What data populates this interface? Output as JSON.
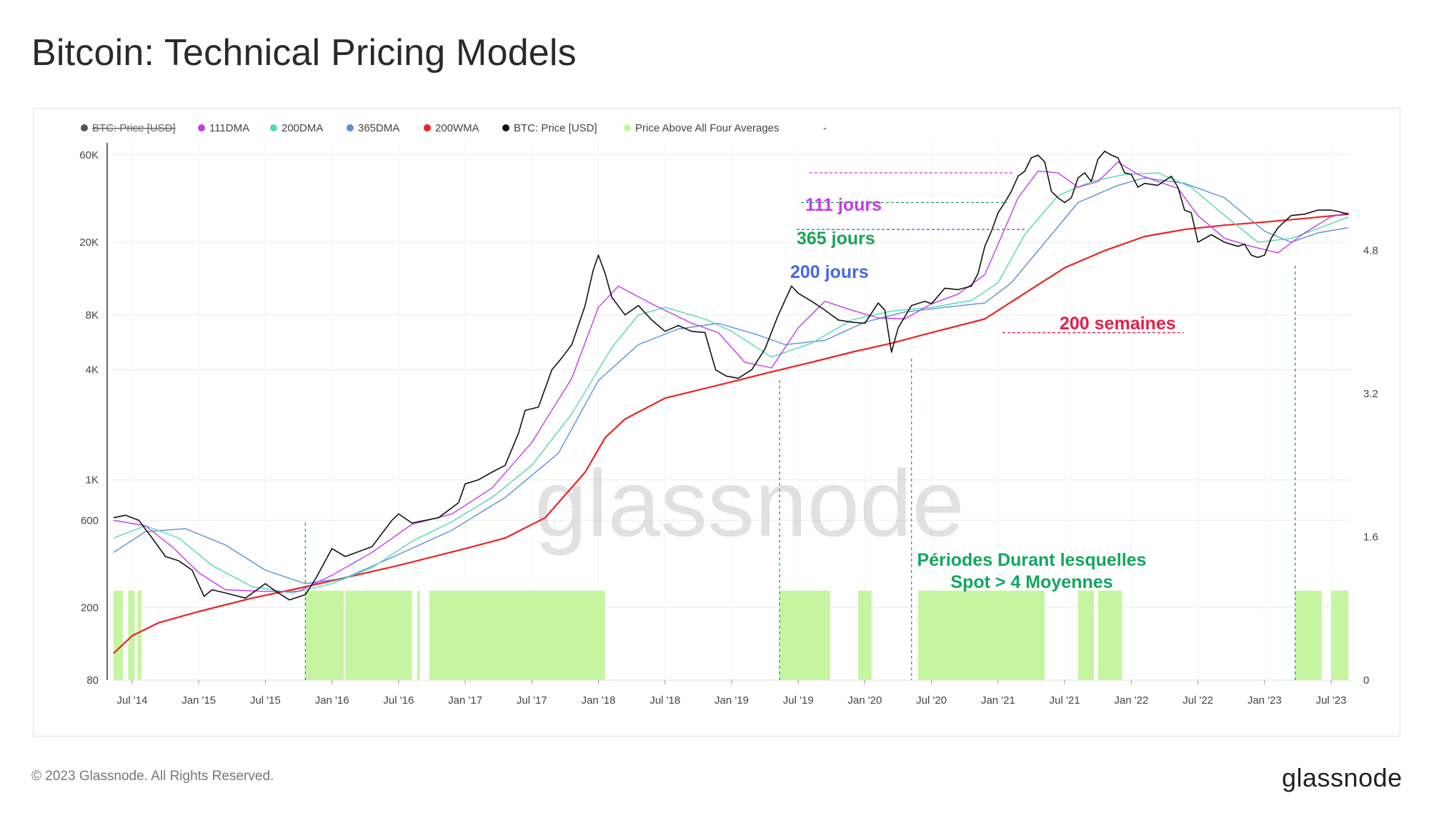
{
  "page": {
    "title": "Bitcoin: Technical Pricing Models",
    "footer": "© 2023 Glassnode. All Rights Reserved.",
    "logo": "glassnode",
    "watermark": "glassnode"
  },
  "chart_data": {
    "type": "line",
    "title": "Bitcoin: Technical Pricing Models",
    "y_scale": "log",
    "ylim": [
      80,
      70000
    ],
    "y2lim": [
      0,
      6
    ],
    "yticks": [
      {
        "value": 60000,
        "label": "60K"
      },
      {
        "value": 20000,
        "label": "20K"
      },
      {
        "value": 8000,
        "label": "8K"
      },
      {
        "value": 4000,
        "label": "4K"
      },
      {
        "value": 1000,
        "label": "1K"
      },
      {
        "value": 600,
        "label": "600"
      },
      {
        "value": 200,
        "label": "200"
      },
      {
        "value": 80,
        "label": "80"
      }
    ],
    "y2ticks": [
      {
        "value": 4.8,
        "label": "4.8"
      },
      {
        "value": 3.2,
        "label": "3.2"
      },
      {
        "value": 1.6,
        "label": "1.6"
      },
      {
        "value": 0,
        "label": "0"
      }
    ],
    "xlim": [
      2014.35,
      2023.65
    ],
    "xticks": [
      {
        "value": 2014.5,
        "label": "Jul '14"
      },
      {
        "value": 2015.0,
        "label": "Jan '15"
      },
      {
        "value": 2015.5,
        "label": "Jul '15"
      },
      {
        "value": 2016.0,
        "label": "Jan '16"
      },
      {
        "value": 2016.5,
        "label": "Jul '16"
      },
      {
        "value": 2017.0,
        "label": "Jan '17"
      },
      {
        "value": 2017.5,
        "label": "Jul '17"
      },
      {
        "value": 2018.0,
        "label": "Jan '18"
      },
      {
        "value": 2018.5,
        "label": "Jul '18"
      },
      {
        "value": 2019.0,
        "label": "Jan '19"
      },
      {
        "value": 2019.5,
        "label": "Jul '19"
      },
      {
        "value": 2020.0,
        "label": "Jan '20"
      },
      {
        "value": 2020.5,
        "label": "Jul '20"
      },
      {
        "value": 2021.0,
        "label": "Jan '21"
      },
      {
        "value": 2021.5,
        "label": "Jul '21"
      },
      {
        "value": 2022.0,
        "label": "Jan '22"
      },
      {
        "value": 2022.5,
        "label": "Jul '22"
      },
      {
        "value": 2023.0,
        "label": "Jan '23"
      },
      {
        "value": 2023.5,
        "label": "Jul '23"
      }
    ],
    "legend": [
      {
        "label": "BTC: Price [USD]",
        "color": "#555555",
        "disabled": true
      },
      {
        "label": "111DMA",
        "color": "#c33bea",
        "disabled": false
      },
      {
        "label": "200DMA",
        "color": "#4fd9b4",
        "disabled": false
      },
      {
        "label": "365DMA",
        "color": "#5b8fd8",
        "disabled": false
      },
      {
        "label": "200WMA",
        "color": "#ee2222",
        "disabled": false
      },
      {
        "label": "BTC: Price [USD]",
        "color": "#111111",
        "disabled": false
      },
      {
        "label": "Price Above All Four Averages",
        "color": "#c6f5a2",
        "disabled": false
      },
      {
        "label": "-",
        "color": "",
        "disabled": false
      }
    ],
    "series": [
      {
        "name": "BTC: Price [USD]",
        "color": "#111111",
        "x": [
          2014.36,
          2014.45,
          2014.55,
          2014.65,
          2014.75,
          2014.85,
          2014.95,
          2015.04,
          2015.1,
          2015.2,
          2015.35,
          2015.5,
          2015.58,
          2015.68,
          2015.8,
          2015.88,
          2016.0,
          2016.1,
          2016.3,
          2016.45,
          2016.5,
          2016.6,
          2016.8,
          2016.95,
          2017.0,
          2017.1,
          2017.2,
          2017.3,
          2017.4,
          2017.45,
          2017.55,
          2017.65,
          2017.72,
          2017.8,
          2017.9,
          2017.96,
          2018.0,
          2018.05,
          2018.1,
          2018.2,
          2018.3,
          2018.4,
          2018.5,
          2018.6,
          2018.7,
          2018.8,
          2018.88,
          2018.96,
          2019.05,
          2019.15,
          2019.25,
          2019.35,
          2019.45,
          2019.5,
          2019.6,
          2019.7,
          2019.8,
          2019.9,
          2020.0,
          2020.1,
          2020.15,
          2020.2,
          2020.25,
          2020.35,
          2020.45,
          2020.5,
          2020.6,
          2020.7,
          2020.8,
          2020.85,
          2020.9,
          2020.95,
          2021.0,
          2021.05,
          2021.1,
          2021.15,
          2021.2,
          2021.25,
          2021.3,
          2021.35,
          2021.4,
          2021.45,
          2021.5,
          2021.55,
          2021.6,
          2021.65,
          2021.7,
          2021.75,
          2021.8,
          2021.85,
          2021.9,
          2021.95,
          2022.0,
          2022.05,
          2022.1,
          2022.2,
          2022.3,
          2022.35,
          2022.4,
          2022.45,
          2022.5,
          2022.6,
          2022.7,
          2022.8,
          2022.85,
          2022.9,
          2022.95,
          2023.0,
          2023.05,
          2023.1,
          2023.2,
          2023.3,
          2023.4,
          2023.5,
          2023.55,
          2023.63
        ],
        "y": [
          620,
          640,
          600,
          480,
          380,
          360,
          320,
          230,
          250,
          240,
          225,
          270,
          245,
          220,
          235,
          290,
          420,
          380,
          430,
          600,
          650,
          580,
          620,
          750,
          950,
          1000,
          1100,
          1200,
          1800,
          2400,
          2500,
          4000,
          4600,
          5500,
          9000,
          14000,
          17000,
          13500,
          10000,
          8000,
          9000,
          7500,
          6500,
          7000,
          6500,
          6400,
          4000,
          3700,
          3600,
          4000,
          5200,
          8000,
          11500,
          10500,
          9500,
          8500,
          7500,
          7300,
          7200,
          9300,
          8500,
          5000,
          6800,
          9000,
          9500,
          9200,
          11200,
          11000,
          11500,
          13500,
          19000,
          23000,
          29000,
          33000,
          38000,
          46000,
          49000,
          58000,
          60000,
          55000,
          38000,
          35000,
          33000,
          35000,
          45000,
          48000,
          43000,
          57000,
          63000,
          60000,
          58000,
          48000,
          47000,
          40000,
          42000,
          41000,
          46000,
          40000,
          30000,
          29000,
          20000,
          22000,
          20000,
          19000,
          19500,
          17000,
          16500,
          17000,
          21000,
          24000,
          28000,
          28500,
          30000,
          30000,
          29500,
          28500
        ]
      },
      {
        "name": "111DMA",
        "color": "#c33bea",
        "x": [
          2014.36,
          2014.6,
          2014.8,
          2015.0,
          2015.2,
          2015.5,
          2015.75,
          2016.0,
          2016.3,
          2016.6,
          2016.9,
          2017.2,
          2017.5,
          2017.8,
          2018.0,
          2018.15,
          2018.4,
          2018.7,
          2018.9,
          2019.1,
          2019.3,
          2019.5,
          2019.7,
          2019.9,
          2020.1,
          2020.3,
          2020.5,
          2020.7,
          2020.9,
          2021.0,
          2021.15,
          2021.3,
          2021.45,
          2021.6,
          2021.75,
          2021.9,
          2022.05,
          2022.2,
          2022.35,
          2022.5,
          2022.7,
          2022.9,
          2023.1,
          2023.3,
          2023.5,
          2023.63
        ],
        "y": [
          600,
          560,
          430,
          310,
          250,
          245,
          245,
          300,
          400,
          570,
          650,
          900,
          1600,
          3600,
          8800,
          11500,
          9200,
          7200,
          6400,
          4400,
          4100,
          6800,
          9500,
          8500,
          7700,
          7600,
          9200,
          10400,
          13300,
          19500,
          35000,
          49000,
          48000,
          40000,
          43000,
          55000,
          47000,
          43000,
          39500,
          28000,
          21000,
          19000,
          17500,
          22500,
          27600,
          29000
        ]
      },
      {
        "name": "200DMA",
        "color": "#4fd9b4",
        "x": [
          2014.36,
          2014.6,
          2014.85,
          2015.1,
          2015.4,
          2015.7,
          2016.0,
          2016.3,
          2016.6,
          2016.9,
          2017.2,
          2017.5,
          2017.8,
          2018.1,
          2018.3,
          2018.5,
          2018.8,
          2019.0,
          2019.3,
          2019.6,
          2019.9,
          2020.2,
          2020.5,
          2020.8,
          2021.0,
          2021.2,
          2021.45,
          2021.7,
          2021.95,
          2022.2,
          2022.45,
          2022.7,
          2022.95,
          2023.2,
          2023.45,
          2023.63
        ],
        "y": [
          480,
          560,
          480,
          340,
          260,
          240,
          270,
          330,
          460,
          590,
          800,
          1200,
          2300,
          5300,
          8000,
          8800,
          7600,
          6500,
          4700,
          5600,
          7500,
          8400,
          8800,
          9600,
          12000,
          22000,
          36000,
          43000,
          47000,
          48000,
          40000,
          28000,
          20000,
          21000,
          24500,
          27500
        ]
      },
      {
        "name": "365DMA",
        "color": "#5b8fd8",
        "x": [
          2014.36,
          2014.6,
          2014.9,
          2015.2,
          2015.5,
          2015.8,
          2016.1,
          2016.5,
          2016.9,
          2017.3,
          2017.7,
          2018.0,
          2018.3,
          2018.6,
          2018.9,
          2019.2,
          2019.4,
          2019.7,
          2020.0,
          2020.3,
          2020.6,
          2020.9,
          2021.1,
          2021.4,
          2021.6,
          2021.9,
          2022.1,
          2022.4,
          2022.7,
          2023.0,
          2023.2,
          2023.4,
          2023.63
        ],
        "y": [
          400,
          520,
          540,
          440,
          320,
          270,
          290,
          390,
          530,
          800,
          1400,
          3500,
          5500,
          6700,
          7200,
          6200,
          5500,
          5800,
          7300,
          8300,
          8800,
          9300,
          12000,
          22000,
          33000,
          41000,
          45000,
          42000,
          35000,
          23000,
          20000,
          22500,
          24000
        ]
      },
      {
        "name": "200WMA",
        "color": "#ee2222",
        "x": [
          2014.36,
          2014.5,
          2014.7,
          2015.0,
          2015.4,
          2015.7,
          2016.0,
          2016.5,
          2017.0,
          2017.3,
          2017.6,
          2017.9,
          2018.05,
          2018.2,
          2018.5,
          2018.9,
          2019.3,
          2019.6,
          2019.9,
          2020.2,
          2020.5,
          2020.9,
          2021.2,
          2021.5,
          2021.8,
          2022.1,
          2022.4,
          2022.7,
          2023.0,
          2023.3,
          2023.63
        ],
        "y": [
          112,
          140,
          165,
          190,
          225,
          250,
          280,
          340,
          420,
          480,
          620,
          1100,
          1700,
          2150,
          2800,
          3300,
          3900,
          4400,
          5000,
          5600,
          6400,
          7600,
          10500,
          14500,
          18000,
          21500,
          23500,
          24800,
          25800,
          27000,
          28500
        ]
      }
    ],
    "spot_above_periods": [
      [
        2014.36,
        2014.43
      ],
      [
        2014.47,
        2014.52
      ],
      [
        2014.54,
        2014.57
      ],
      [
        2015.8,
        2016.09
      ],
      [
        2016.1,
        2016.6
      ],
      [
        2016.64,
        2016.66
      ],
      [
        2016.73,
        2018.05
      ],
      [
        2019.36,
        2019.74
      ],
      [
        2019.95,
        2020.05
      ],
      [
        2020.4,
        2021.35
      ],
      [
        2021.6,
        2021.72
      ],
      [
        2021.75,
        2021.93
      ],
      [
        2023.23,
        2023.43
      ],
      [
        2023.5,
        2023.63
      ]
    ],
    "annotations": [
      {
        "text": "111 jours",
        "color": "#c33bea",
        "y": 48000
      },
      {
        "text": "365 jours",
        "color": "#1aa35a",
        "y": 33000
      },
      {
        "text": "200 jours",
        "color": "#4469e0",
        "y": 23500
      },
      {
        "text": "200 semaines",
        "color": "#e81d48",
        "y": 6400
      },
      {
        "text": "Périodes Durant lesquelles",
        "color": "#10a75e"
      },
      {
        "text": "Spot > 4 Moyennes",
        "color": "#10a75e"
      }
    ],
    "event_lines_x": [
      2015.8,
      2019.36,
      2020.35,
      2023.23
    ]
  }
}
